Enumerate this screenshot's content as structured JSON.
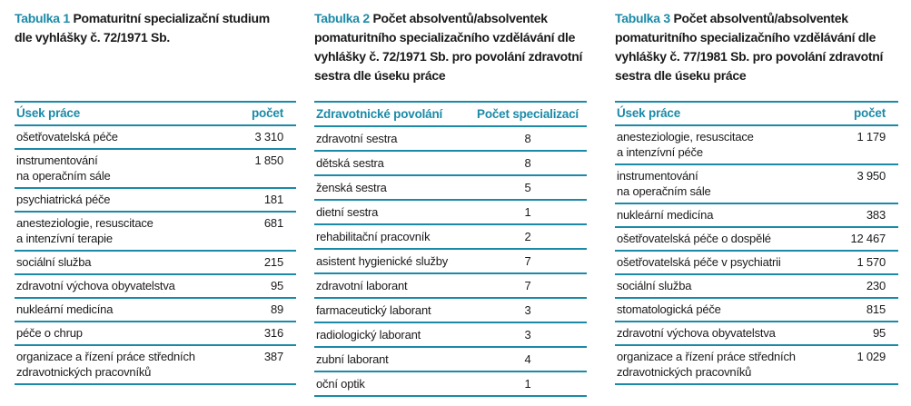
{
  "tables": [
    {
      "label": "Tabulka 1",
      "title": "Pomaturitní specializační studium dle vyhlášky č. 72/1971 Sb.",
      "headers": [
        "Úsek práce",
        "počet"
      ],
      "rows": [
        [
          "ošetřovatelská péče",
          "3 310"
        ],
        [
          "instrumentování\nna operačním sále",
          "1 850"
        ],
        [
          "psychiatrická péče",
          "181"
        ],
        [
          "anesteziologie, resuscitace\na intenzívní terapie",
          "681"
        ],
        [
          "sociální služba",
          "215"
        ],
        [
          "zdravotní výchova obyvatelstva",
          "95"
        ],
        [
          "nukleární medicína",
          "89"
        ],
        [
          "péče o chrup",
          "316"
        ],
        [
          "organizace a řízení práce středních\nzdravotnických pracovníků",
          "387"
        ]
      ]
    },
    {
      "label": "Tabulka 2",
      "title": "Počet absolventů/absolventek pomaturitního specializačního vzdělávání dle vyhlášky č. 72/1971 Sb. pro povolání zdravotní sestra dle úseku práce",
      "headers": [
        "Zdravotnické povolání",
        "Počet specializací"
      ],
      "rows": [
        [
          "zdravotní sestra",
          "8"
        ],
        [
          "dětská sestra",
          "8"
        ],
        [
          "ženská sestra",
          "5"
        ],
        [
          "dietní sestra",
          "1"
        ],
        [
          "rehabilitační pracovník",
          "2"
        ],
        [
          "asistent hygienické služby",
          "7"
        ],
        [
          "zdravotní laborant",
          "7"
        ],
        [
          "farmaceutický laborant",
          "3"
        ],
        [
          "radiologický laborant",
          "3"
        ],
        [
          "zubní laborant",
          "4"
        ],
        [
          "oční optik",
          "1"
        ]
      ]
    },
    {
      "label": "Tabulka 3",
      "title": "Počet absolventů/absolventek pomaturitního specializačního vzdělávání dle vyhlášky č. 77/1981 Sb. pro povolání zdravotní sestra dle úseku práce",
      "headers": [
        "Úsek práce",
        "počet"
      ],
      "rows": [
        [
          "anesteziologie, resuscitace\na intenzívní péče",
          "1 179"
        ],
        [
          "instrumentování\nna operačním sále",
          "3 950"
        ],
        [
          "nukleární medicína",
          "383"
        ],
        [
          "ošetřovatelská péče o dospělé",
          "12 467"
        ],
        [
          "ošetřovatelská péče v psychiatrii",
          "1 570"
        ],
        [
          "sociální služba",
          "230"
        ],
        [
          "stomatologická péče",
          "815"
        ],
        [
          "zdravotní výchova obyvatelstva",
          "95"
        ],
        [
          "organizace a řízení práce středních\nzdravotnických pracovníků",
          "1 029"
        ]
      ]
    }
  ],
  "accent_color": "#1b8aa8"
}
